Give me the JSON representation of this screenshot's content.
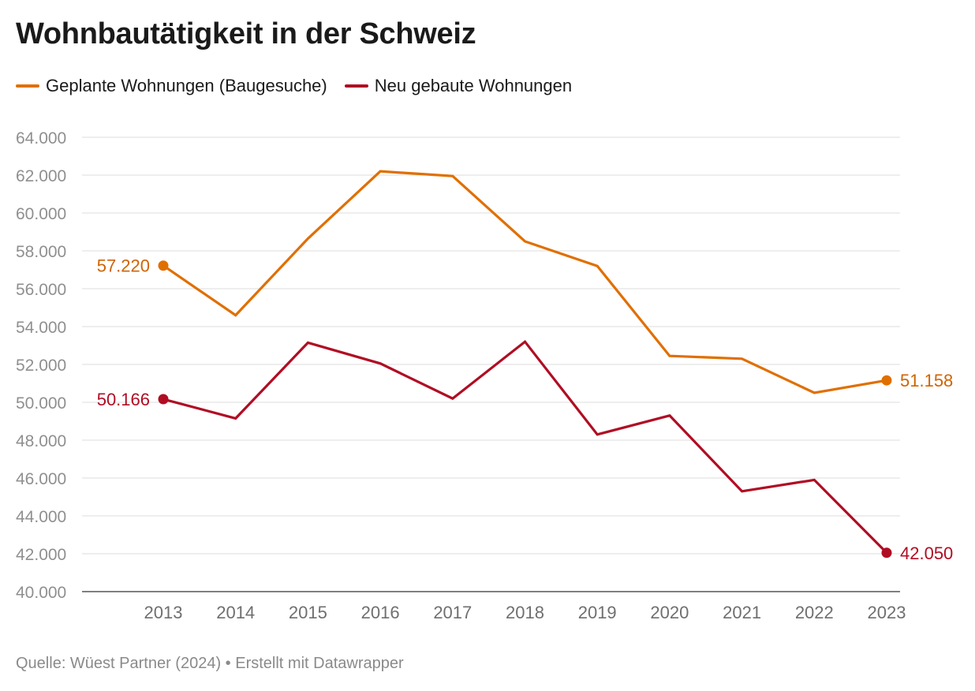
{
  "title": "Wohnbautätigkeit in der Schweiz",
  "footer": "Quelle: Wüest Partner (2024) • Erstellt mit Datawrapper",
  "chart_data": {
    "type": "line",
    "x": [
      "2013",
      "2014",
      "2015",
      "2016",
      "2017",
      "2018",
      "2019",
      "2020",
      "2021",
      "2022",
      "2023"
    ],
    "ylim": [
      40000,
      64000
    ],
    "yticks": [
      {
        "value": 40000,
        "label": "40.000"
      },
      {
        "value": 42000,
        "label": "42.000"
      },
      {
        "value": 44000,
        "label": "44.000"
      },
      {
        "value": 46000,
        "label": "46.000"
      },
      {
        "value": 48000,
        "label": "48.000"
      },
      {
        "value": 50000,
        "label": "50.000"
      },
      {
        "value": 52000,
        "label": "52.000"
      },
      {
        "value": 54000,
        "label": "54.000"
      },
      {
        "value": 56000,
        "label": "56.000"
      },
      {
        "value": 58000,
        "label": "58.000"
      },
      {
        "value": 60000,
        "label": "60.000"
      },
      {
        "value": 62000,
        "label": "62.000"
      },
      {
        "value": 64000,
        "label": "64.000"
      }
    ],
    "grid": true,
    "legend_position": "top-left",
    "series": [
      {
        "name": "Geplante Wohnungen (Baugesuche)",
        "color": "#e06f00",
        "label_color": "#d06400",
        "values": [
          57220,
          54600,
          58650,
          62200,
          61950,
          58500,
          57200,
          52450,
          52300,
          50500,
          51158
        ],
        "start_label": "57.220",
        "end_label": "51.158"
      },
      {
        "name": "Neu gebaute Wohnungen",
        "color": "#b00d23",
        "label_color": "#b00d23",
        "values": [
          50166,
          49150,
          53150,
          52050,
          50200,
          53200,
          48300,
          49300,
          45300,
          45900,
          42050
        ],
        "start_label": "50.166",
        "end_label": "42.050"
      }
    ]
  }
}
